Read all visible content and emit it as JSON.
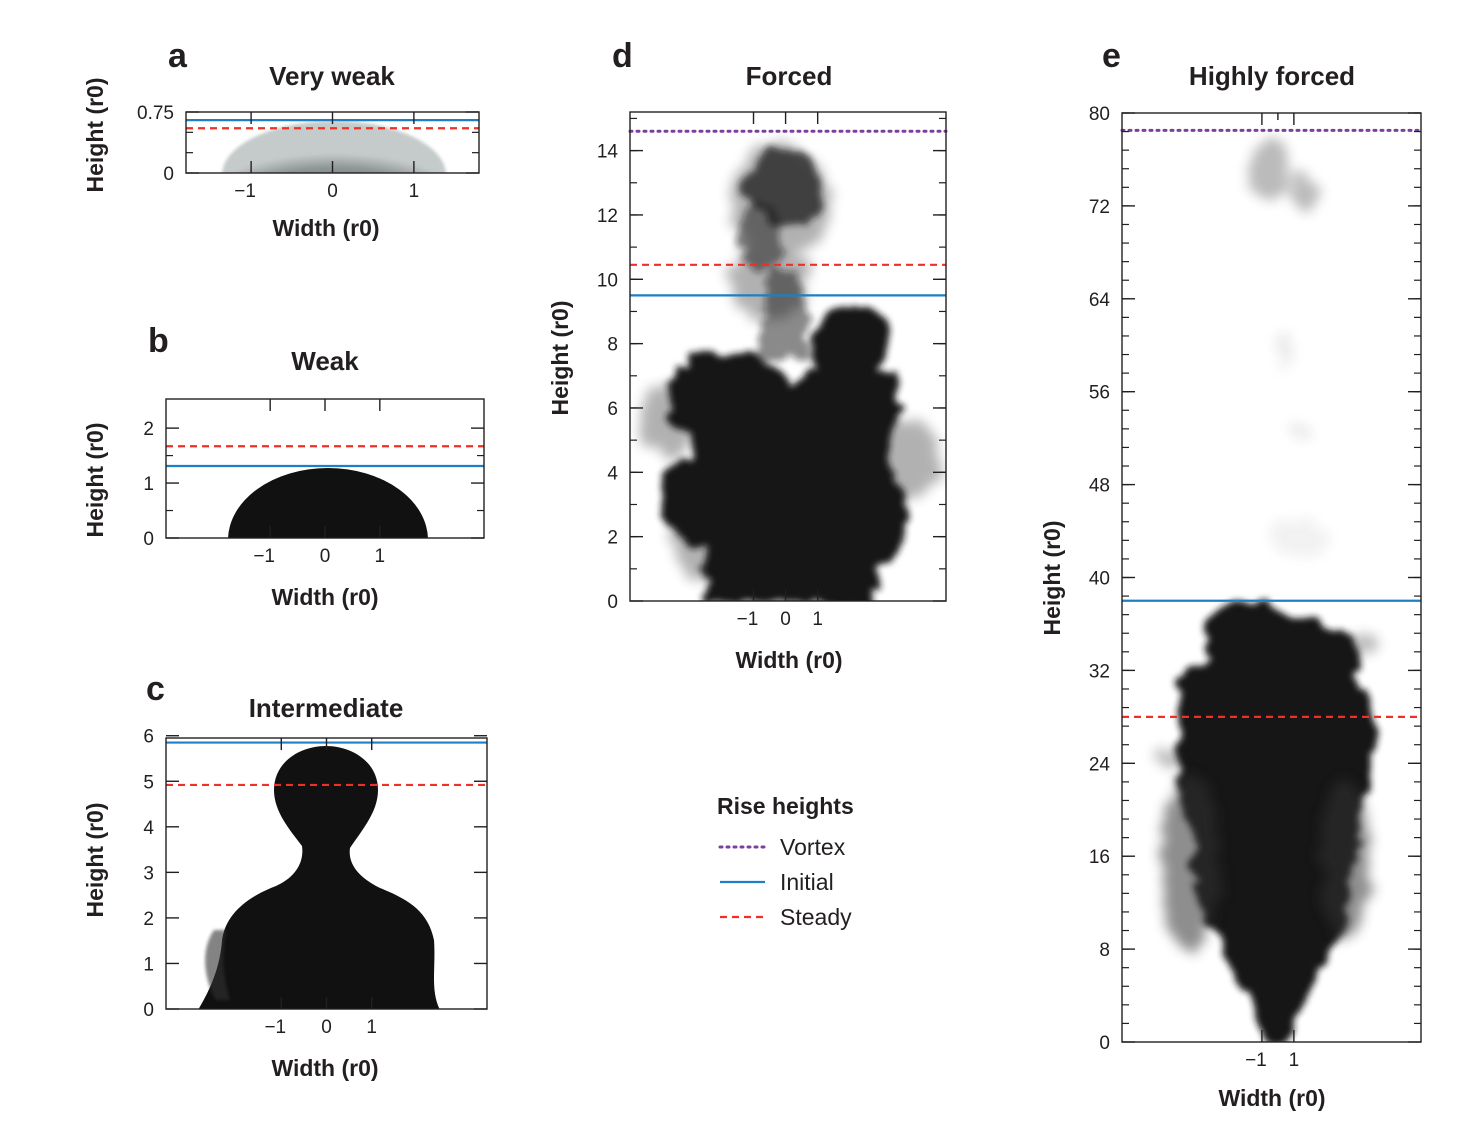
{
  "colors": {
    "vortex": "#7b3f9e",
    "initial": "#1f7fc4",
    "steady": "#ee3124",
    "plume": "#111111"
  },
  "legend": {
    "title": "Rise heights",
    "items": [
      {
        "label": "Vortex",
        "style": "dotted",
        "color": "#7b3f9e"
      },
      {
        "label": "Initial",
        "style": "solid",
        "color": "#1f7fc4"
      },
      {
        "label": "Steady",
        "style": "dashed",
        "color": "#ee3124"
      }
    ]
  },
  "chart_data": [
    {
      "panel": "a",
      "type": "image-with-reference-lines",
      "title": "Very weak",
      "xlabel": "Width (r0)",
      "ylabel": "Height (r0)",
      "xlim": [
        -1.8,
        1.8
      ],
      "ylim": [
        0,
        0.75
      ],
      "xticks": [
        "−1",
        "0",
        "1"
      ],
      "xtick_values": [
        -1,
        0,
        1
      ],
      "yticks": [
        "0",
        "0.75"
      ],
      "ytick_values": [
        0,
        0.75
      ],
      "rise_heights": {
        "initial": 0.65,
        "steady": 0.55
      }
    },
    {
      "panel": "b",
      "type": "image-with-reference-lines",
      "title": "Weak",
      "xlabel": "Width (r0)",
      "ylabel": "Height (r0)",
      "xlim": [
        -2.9,
        2.9
      ],
      "ylim": [
        0,
        2.53
      ],
      "xticks": [
        "−1",
        "0",
        "1"
      ],
      "xtick_values": [
        -1,
        0,
        1
      ],
      "yticks": [
        "0",
        "1",
        "2"
      ],
      "ytick_values": [
        0,
        1,
        2
      ],
      "rise_heights": {
        "initial": 1.31,
        "steady": 1.67
      }
    },
    {
      "panel": "c",
      "type": "image-with-reference-lines",
      "title": "Intermediate",
      "xlabel": "Width (r0)",
      "ylabel": "Height (r0)",
      "xlim": [
        -3.55,
        3.55
      ],
      "ylim": [
        0,
        5.95
      ],
      "xticks": [
        "−1",
        "0",
        "1"
      ],
      "xtick_values": [
        -1,
        0,
        1
      ],
      "yticks": [
        "0",
        "1",
        "2",
        "3",
        "4",
        "5",
        "6"
      ],
      "ytick_values": [
        0,
        1,
        2,
        3,
        4,
        5,
        6
      ],
      "rise_heights": {
        "initial": 5.85,
        "steady": 4.92
      }
    },
    {
      "panel": "d",
      "type": "image-with-reference-lines",
      "title": "Forced",
      "xlabel": "Width (r0)",
      "ylabel": "Height (r0)",
      "xlim": [
        -4.85,
        5.0
      ],
      "ylim": [
        0,
        15.2
      ],
      "xticks": [
        "−1",
        "0",
        "1"
      ],
      "xtick_values": [
        -1,
        0,
        1
      ],
      "yticks": [
        "0",
        "2",
        "4",
        "6",
        "8",
        "10",
        "12",
        "14"
      ],
      "ytick_values": [
        0,
        2,
        4,
        6,
        8,
        10,
        12,
        14
      ],
      "rise_heights": {
        "vortex": 14.6,
        "initial": 9.5,
        "steady": 10.45
      }
    },
    {
      "panel": "e",
      "type": "image-with-reference-lines",
      "title": "Highly forced",
      "xlabel": "Width (r0)",
      "ylabel": "Height (r0)",
      "xlim": [
        -9.75,
        8.95
      ],
      "ylim": [
        0,
        80
      ],
      "xticks": [
        "−1",
        "1"
      ],
      "xtick_values": [
        -1,
        1
      ],
      "yticks": [
        "0",
        "8",
        "16",
        "24",
        "32",
        "40",
        "48",
        "56",
        "64",
        "72",
        "80"
      ],
      "ytick_values": [
        0,
        8,
        16,
        24,
        32,
        40,
        48,
        56,
        64,
        72,
        80
      ],
      "rise_heights": {
        "vortex": 78.5,
        "initial": 38,
        "steady": 28
      }
    }
  ]
}
